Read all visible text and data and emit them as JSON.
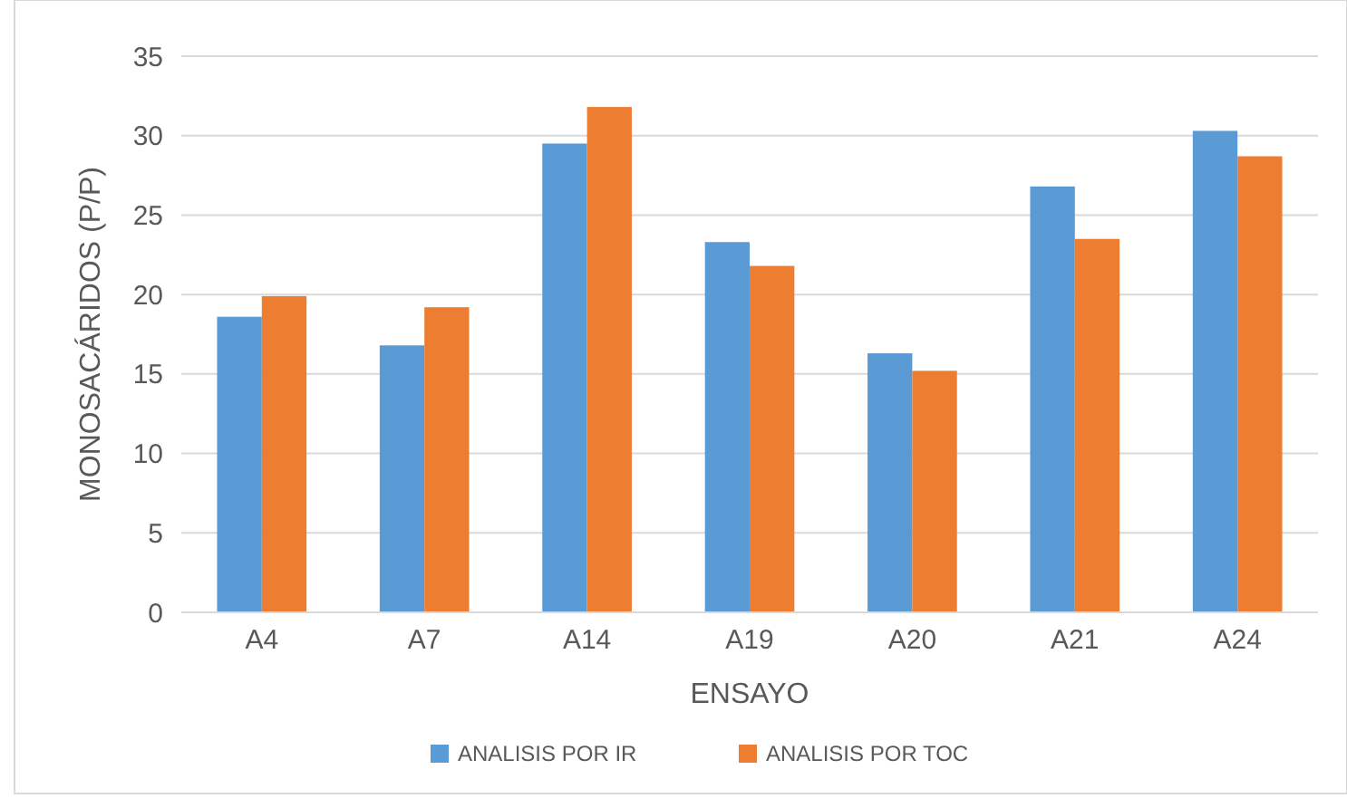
{
  "chart_data": {
    "type": "bar",
    "xlabel": "ENSAYO",
    "ylabel": "MONOSACÁRIDOS (P/P)",
    "categories": [
      "A4",
      "A7",
      "A14",
      "A19",
      "A20",
      "A21",
      "A24"
    ],
    "series": [
      {
        "name": "ANALISIS POR IR",
        "color": "#5b9bd5",
        "values": [
          18.6,
          16.8,
          29.5,
          23.3,
          16.3,
          26.8,
          30.3
        ]
      },
      {
        "name": "ANALISIS POR TOC",
        "color": "#ed7d31",
        "values": [
          19.9,
          19.2,
          31.8,
          21.8,
          15.2,
          23.5,
          28.7
        ]
      }
    ],
    "ylim": [
      0,
      35
    ],
    "yticks": [
      0,
      5,
      10,
      15,
      20,
      25,
      30,
      35
    ],
    "grid": "y",
    "legend": "bottom"
  }
}
